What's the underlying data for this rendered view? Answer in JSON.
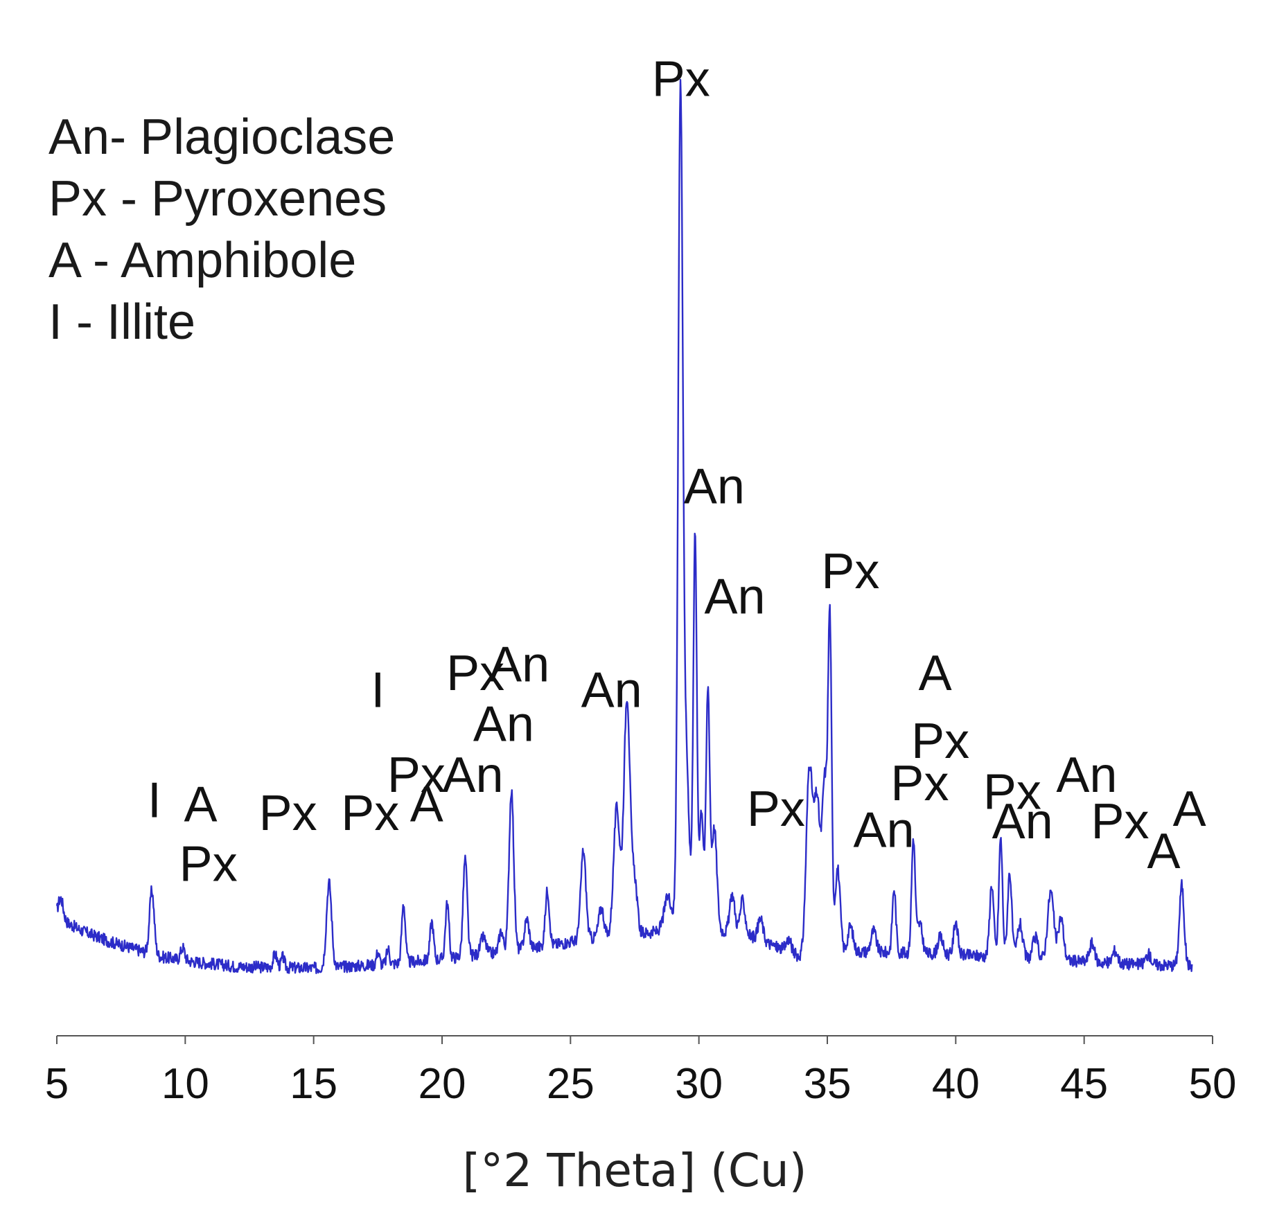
{
  "chart_data": {
    "type": "line",
    "title": "",
    "xlabel": "[°2 Theta] (Cu)",
    "ylabel": "",
    "xlim": [
      5,
      50
    ],
    "ylim": [
      0,
      100
    ],
    "xticks": [
      5,
      10,
      15,
      20,
      25,
      30,
      35,
      40,
      45,
      50
    ],
    "grid": false,
    "line_color": "#2c2cc8",
    "legend_placement": "top-left",
    "legend_entries": [
      "An- Plagioclase",
      "Px - Pyroxenes",
      "A - Amphibole",
      "I - Illite"
    ],
    "series": [
      {
        "baseline": [
          [
            5,
            6.2
          ],
          [
            6,
            4.6
          ],
          [
            7,
            3.4
          ],
          [
            8,
            2.5
          ],
          [
            9,
            1.6
          ],
          [
            10,
            1.1
          ],
          [
            12,
            0.4
          ],
          [
            15,
            0.2
          ],
          [
            18,
            0.7
          ],
          [
            20,
            1.3
          ],
          [
            22,
            2.0
          ],
          [
            24,
            2.8
          ],
          [
            26,
            3.8
          ],
          [
            28,
            4.4
          ],
          [
            30,
            5.0
          ],
          [
            32,
            4.0
          ],
          [
            34,
            1.5
          ],
          [
            36,
            2.2
          ],
          [
            38,
            2.0
          ],
          [
            40,
            1.8
          ],
          [
            42,
            1.5
          ],
          [
            44,
            1.2
          ],
          [
            46,
            0.8
          ],
          [
            48,
            0.6
          ],
          [
            49,
            0.5
          ]
        ],
        "peaks": [
          [
            5.15,
            2.5,
            0.1
          ],
          [
            8.7,
            7.5,
            0.09
          ],
          [
            9.9,
            1.5,
            0.08
          ],
          [
            13.5,
            1.5,
            0.08
          ],
          [
            13.8,
            1.2,
            0.06
          ],
          [
            15.6,
            10.0,
            0.1
          ],
          [
            17.5,
            1.5,
            0.06
          ],
          [
            17.9,
            1.8,
            0.06
          ],
          [
            18.5,
            7.0,
            0.07
          ],
          [
            19.6,
            4.5,
            0.07
          ],
          [
            20.2,
            6.5,
            0.07
          ],
          [
            20.9,
            11.5,
            0.08
          ],
          [
            21.6,
            2.0,
            0.1
          ],
          [
            22.3,
            2.5,
            0.08
          ],
          [
            22.7,
            19.0,
            0.09
          ],
          [
            23.3,
            3.5,
            0.09
          ],
          [
            24.1,
            6.5,
            0.08
          ],
          [
            25.5,
            10.5,
            0.1
          ],
          [
            26.2,
            3.5,
            0.1
          ],
          [
            26.8,
            15.0,
            0.12
          ],
          [
            27.2,
            28.0,
            0.12
          ],
          [
            27.5,
            6.0,
            0.1
          ],
          [
            28.8,
            4.0,
            0.15
          ],
          [
            29.28,
            96.0,
            0.09
          ],
          [
            29.5,
            20.0,
            0.12
          ],
          [
            29.85,
            46.0,
            0.07
          ],
          [
            30.1,
            14.0,
            0.08
          ],
          [
            30.35,
            28.0,
            0.07
          ],
          [
            30.6,
            12.0,
            0.1
          ],
          [
            31.3,
            4.5,
            0.1
          ],
          [
            31.7,
            4.0,
            0.1
          ],
          [
            32.4,
            2.5,
            0.1
          ],
          [
            33.5,
            1.5,
            0.1
          ],
          [
            34.3,
            22.0,
            0.12
          ],
          [
            34.6,
            18.0,
            0.12
          ],
          [
            34.9,
            20.0,
            0.1
          ],
          [
            35.1,
            38.0,
            0.07
          ],
          [
            35.4,
            10.0,
            0.1
          ],
          [
            35.9,
            3.0,
            0.1
          ],
          [
            36.8,
            2.5,
            0.1
          ],
          [
            37.6,
            7.5,
            0.07
          ],
          [
            38.35,
            13.5,
            0.07
          ],
          [
            38.6,
            3.5,
            0.1
          ],
          [
            39.4,
            2.0,
            0.1
          ],
          [
            40.0,
            4.0,
            0.08
          ],
          [
            41.4,
            8.5,
            0.08
          ],
          [
            41.75,
            14.0,
            0.07
          ],
          [
            42.1,
            10.0,
            0.08
          ],
          [
            42.5,
            4.0,
            0.1
          ],
          [
            43.1,
            2.5,
            0.1
          ],
          [
            43.7,
            8.0,
            0.12
          ],
          [
            44.1,
            5.0,
            0.1
          ],
          [
            45.3,
            2.2,
            0.1
          ],
          [
            46.2,
            1.5,
            0.1
          ],
          [
            47.5,
            1.2,
            0.1
          ],
          [
            48.8,
            9.5,
            0.09
          ]
        ]
      }
    ],
    "annotations": [
      {
        "text": "Px",
        "x": 29.3,
        "y": 103.0
      },
      {
        "text": "An",
        "x": 30.6,
        "y": 55.0
      },
      {
        "text": "An",
        "x": 31.4,
        "y": 42.0
      },
      {
        "text": "Px",
        "x": 35.9,
        "y": 45.0
      },
      {
        "text": "A",
        "x": 39.2,
        "y": 33.0
      },
      {
        "text": "Px",
        "x": 39.4,
        "y": 25.0
      },
      {
        "text": "Px",
        "x": 38.6,
        "y": 20.0
      },
      {
        "text": "An",
        "x": 37.2,
        "y": 14.5
      },
      {
        "text": "Px",
        "x": 42.2,
        "y": 19.0
      },
      {
        "text": "An",
        "x": 42.6,
        "y": 15.5
      },
      {
        "text": "An",
        "x": 45.1,
        "y": 21.0
      },
      {
        "text": "Px",
        "x": 46.4,
        "y": 15.5
      },
      {
        "text": "A",
        "x": 48.1,
        "y": 12.0
      },
      {
        "text": "A",
        "x": 49.1,
        "y": 17.0
      },
      {
        "text": "Px",
        "x": 33.0,
        "y": 17.0
      },
      {
        "text": "An",
        "x": 26.6,
        "y": 31.0
      },
      {
        "text": "Px",
        "x": 21.3,
        "y": 33.0
      },
      {
        "text": "An",
        "x": 23.0,
        "y": 34.0
      },
      {
        "text": "An",
        "x": 22.4,
        "y": 27.0
      },
      {
        "text": "An",
        "x": 21.2,
        "y": 21.0
      },
      {
        "text": "Px",
        "x": 19.0,
        "y": 21.0
      },
      {
        "text": "A",
        "x": 19.4,
        "y": 17.5
      },
      {
        "text": "I",
        "x": 17.5,
        "y": 31.0
      },
      {
        "text": "Px",
        "x": 17.2,
        "y": 16.5
      },
      {
        "text": "Px",
        "x": 14.0,
        "y": 16.5
      },
      {
        "text": "I",
        "x": 8.8,
        "y": 18.0
      },
      {
        "text": "A",
        "x": 10.6,
        "y": 17.5
      },
      {
        "text": "Px",
        "x": 10.9,
        "y": 10.5
      }
    ]
  }
}
